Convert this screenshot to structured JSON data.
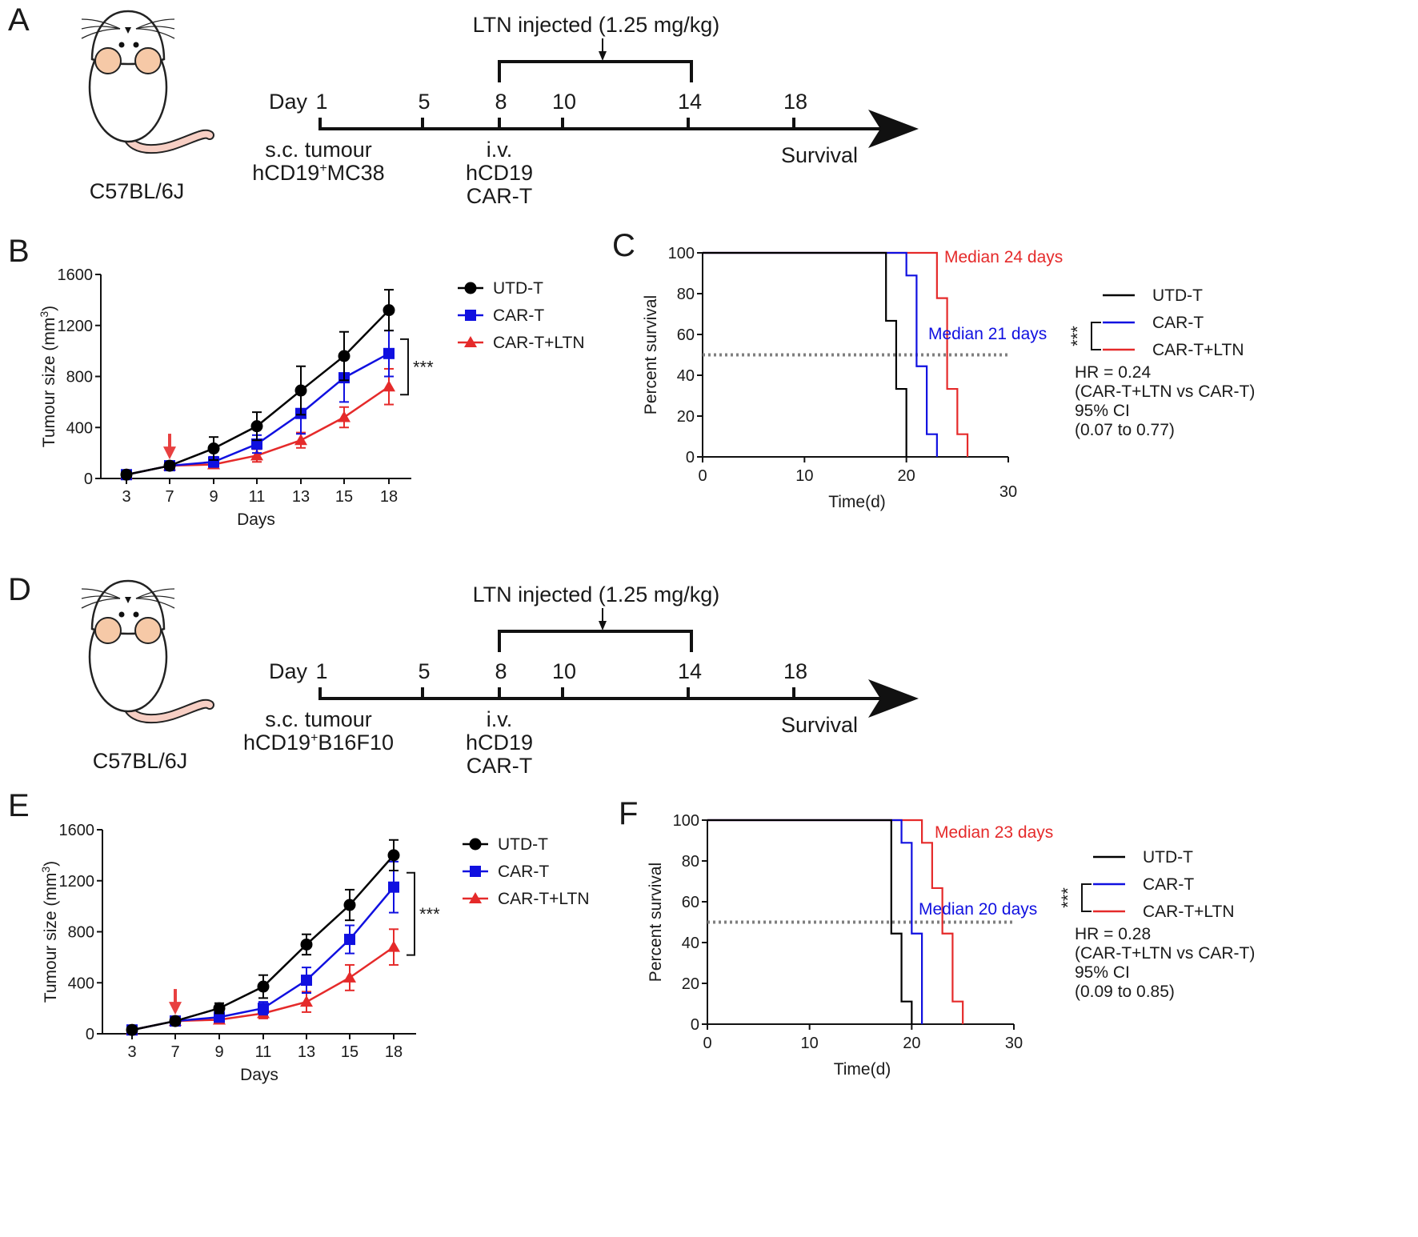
{
  "panels": {
    "A": {
      "label": "A",
      "strain": "C57BL/6J",
      "ltn_label": "LTN injected (1.25 mg/kg)",
      "day_word": "Day",
      "days": [
        "1",
        "5",
        "8",
        "10",
        "14",
        "18"
      ],
      "tumour_line1": "s.c. tumour",
      "tumour_line2_prefix": "hCD19",
      "tumour_sup": "+",
      "tumour_line2_suffix": "MC38",
      "iv_lines": [
        "i.v.",
        "hCD19",
        "CAR-T"
      ],
      "survival": "Survival"
    },
    "D": {
      "label": "D",
      "strain": "C57BL/6J",
      "ltn_label": "LTN injected (1.25 mg/kg)",
      "day_word": "Day",
      "days": [
        "1",
        "5",
        "8",
        "10",
        "14",
        "18"
      ],
      "tumour_line1": "s.c. tumour",
      "tumour_line2_prefix": "hCD19",
      "tumour_sup": "+",
      "tumour_line2_suffix": "B16F10",
      "iv_lines": [
        "i.v.",
        "hCD19",
        "CAR-T"
      ],
      "survival": "Survival"
    },
    "B": {
      "label": "B"
    },
    "C": {
      "label": "C"
    },
    "E": {
      "label": "E"
    },
    "F": {
      "label": "F"
    }
  },
  "colors": {
    "utd": "#000000",
    "car": "#1010e0",
    "ltn": "#e52a2a",
    "arrow": "#e84040",
    "dotted": "#808080"
  },
  "chart_data": [
    {
      "id": "B",
      "type": "line",
      "xlabel": "Days",
      "ylabel": "Tumour size (mm",
      "ylabel_sup": "3",
      "ylabel_end": ")",
      "x": [
        3,
        7,
        9,
        11,
        13,
        15,
        18
      ],
      "x_ticks": [
        "3",
        "7",
        "9",
        "11",
        "13",
        "15",
        "18"
      ],
      "y_ticks": [
        0,
        400,
        800,
        1200,
        1600
      ],
      "ylim": [
        0,
        1600
      ],
      "treatment_arrow_day": 7,
      "significance": "***",
      "series": [
        {
          "name": "UTD-T",
          "marker": "circle",
          "values": [
            30,
            100,
            235,
            410,
            690,
            960,
            1320
          ],
          "errors": [
            10,
            15,
            90,
            110,
            190,
            190,
            160
          ]
        },
        {
          "name": "CAR-T",
          "marker": "square",
          "values": [
            30,
            100,
            130,
            270,
            510,
            790,
            980
          ],
          "errors": [
            10,
            15,
            40,
            70,
            160,
            190,
            180
          ]
        },
        {
          "name": "CAR-T+LTN",
          "marker": "triangle",
          "values": [
            30,
            100,
            110,
            180,
            300,
            480,
            720
          ],
          "errors": [
            10,
            15,
            30,
            50,
            60,
            80,
            140
          ]
        }
      ]
    },
    {
      "id": "C",
      "type": "line",
      "xlabel": "Time(d)",
      "ylabel": "Percent survival",
      "x_ticks": [
        0,
        10,
        20,
        30
      ],
      "y_ticks": [
        0,
        20,
        40,
        60,
        80,
        100
      ],
      "xlim": [
        0,
        30
      ],
      "ylim": [
        0,
        100
      ],
      "median_line": 50,
      "annotations": [
        {
          "text": "Median 24 days",
          "series": "CAR-T+LTN"
        },
        {
          "text": "Median 21 days",
          "series": "CAR-T"
        }
      ],
      "significance": "***",
      "hr_text": [
        "HR = 0.24",
        "(CAR-T+LTN vs CAR-T)",
        "95% CI",
        "(0.07 to 0.77)"
      ],
      "series": [
        {
          "name": "UTD-T",
          "steps": [
            [
              0,
              100
            ],
            [
              18,
              100
            ],
            [
              18,
              66.7
            ],
            [
              19,
              66.7
            ],
            [
              19,
              33.3
            ],
            [
              20,
              33.3
            ],
            [
              20,
              0
            ]
          ]
        },
        {
          "name": "CAR-T",
          "steps": [
            [
              0,
              100
            ],
            [
              19,
              100
            ],
            [
              19,
              100
            ],
            [
              20,
              100
            ],
            [
              20,
              88.9
            ],
            [
              21,
              88.9
            ],
            [
              21,
              66.7
            ],
            [
              21,
              66.7
            ],
            [
              21,
              44.4
            ],
            [
              22,
              44.4
            ],
            [
              22,
              33.3
            ],
            [
              22,
              11.1
            ],
            [
              23,
              11.1
            ],
            [
              23,
              0
            ]
          ]
        },
        {
          "name": "CAR-T+LTN",
          "steps": [
            [
              0,
              100
            ],
            [
              23,
              100
            ],
            [
              23,
              77.8
            ],
            [
              24,
              77.8
            ],
            [
              24,
              33.3
            ],
            [
              25,
              33.3
            ],
            [
              25,
              11.1
            ],
            [
              26,
              11.1
            ],
            [
              26,
              0
            ]
          ]
        }
      ]
    },
    {
      "id": "E",
      "type": "line",
      "xlabel": "Days",
      "ylabel": "Tumour size (mm",
      "ylabel_sup": "3",
      "ylabel_end": ")",
      "x": [
        3,
        7,
        9,
        11,
        13,
        15,
        18
      ],
      "x_ticks": [
        "3",
        "7",
        "9",
        "11",
        "13",
        "15",
        "18"
      ],
      "y_ticks": [
        0,
        400,
        800,
        1200,
        1600
      ],
      "ylim": [
        0,
        1600
      ],
      "treatment_arrow_day": 7,
      "significance": "***",
      "series": [
        {
          "name": "UTD-T",
          "marker": "circle",
          "values": [
            30,
            100,
            200,
            370,
            700,
            1010,
            1400
          ],
          "errors": [
            10,
            15,
            40,
            90,
            80,
            120,
            120
          ]
        },
        {
          "name": "CAR-T",
          "marker": "square",
          "values": [
            30,
            100,
            130,
            200,
            420,
            740,
            1150
          ],
          "errors": [
            10,
            15,
            30,
            50,
            100,
            110,
            200
          ]
        },
        {
          "name": "CAR-T+LTN",
          "marker": "triangle",
          "values": [
            30,
            100,
            110,
            160,
            250,
            440,
            680
          ],
          "errors": [
            10,
            15,
            30,
            40,
            80,
            100,
            140
          ]
        }
      ]
    },
    {
      "id": "F",
      "type": "line",
      "xlabel": "Time(d)",
      "ylabel": "Percent survival",
      "x_ticks": [
        0,
        10,
        20,
        30
      ],
      "y_ticks": [
        0,
        20,
        40,
        60,
        80,
        100
      ],
      "xlim": [
        0,
        30
      ],
      "ylim": [
        0,
        100
      ],
      "median_line": 50,
      "annotations": [
        {
          "text": "Median 23 days",
          "series": "CAR-T+LTN"
        },
        {
          "text": "Median 20 days",
          "series": "CAR-T"
        }
      ],
      "significance": "***",
      "hr_text": [
        "HR = 0.28",
        "(CAR-T+LTN vs CAR-T)",
        "95% CI",
        "(0.09 to 0.85)"
      ],
      "series": [
        {
          "name": "UTD-T",
          "steps": [
            [
              0,
              100
            ],
            [
              18,
              100
            ],
            [
              18,
              44.4
            ],
            [
              19,
              44.4
            ],
            [
              19,
              11.1
            ],
            [
              20,
              11.1
            ],
            [
              20,
              0
            ]
          ]
        },
        {
          "name": "CAR-T",
          "steps": [
            [
              0,
              100
            ],
            [
              19,
              100
            ],
            [
              19,
              88.9
            ],
            [
              20,
              88.9
            ],
            [
              20,
              44.4
            ],
            [
              21,
              44.4
            ],
            [
              21,
              0
            ]
          ]
        },
        {
          "name": "CAR-T+LTN",
          "steps": [
            [
              0,
              100
            ],
            [
              21,
              100
            ],
            [
              21,
              88.9
            ],
            [
              22,
              88.9
            ],
            [
              22,
              66.7
            ],
            [
              23,
              66.7
            ],
            [
              23,
              44.4
            ],
            [
              24,
              44.4
            ],
            [
              24,
              11.1
            ],
            [
              25,
              11.1
            ],
            [
              25,
              0
            ]
          ]
        }
      ]
    }
  ]
}
